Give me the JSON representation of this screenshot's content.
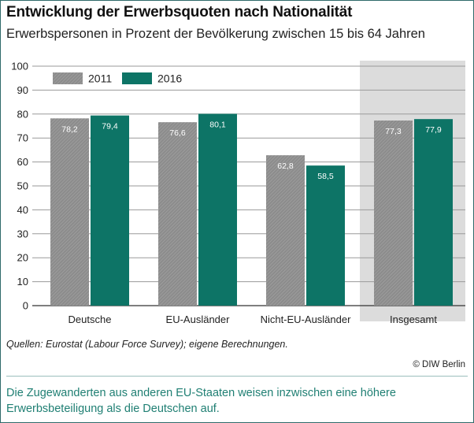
{
  "title": "Entwicklung der Erwerbsquoten nach Nationalität",
  "subtitle": "Erwerbspersonen in Prozent der Bevölkerung zwischen 15 bis 64 Jahren",
  "source": "Quellen: Eurostat (Labour Force Survey); eigene Berechnungen.",
  "copyright": "© DIW Berlin",
  "caption": "Die Zugewanderten aus anderen EU-Staaten weisen inzwischen eine höhere Erwerbsbeteiligung als die Deutschen auf.",
  "colors": {
    "series_2011": "#8c8c8c",
    "series_2016": "#0d7466",
    "highlight_bg": "#dcdcdc",
    "accent_text": "#1f7f73"
  },
  "chart_data": {
    "type": "bar",
    "categories": [
      "Deutsche",
      "EU-Ausländer",
      "Nicht-EU-Ausländer",
      "Insgesamt"
    ],
    "highlighted_category": "Insgesamt",
    "series": [
      {
        "name": "2011",
        "values": [
          78.2,
          76.6,
          62.8,
          77.3
        ],
        "labels": [
          "78,2",
          "76,6",
          "62,8",
          "77,3"
        ],
        "pattern": "hatched"
      },
      {
        "name": "2016",
        "values": [
          79.4,
          80.1,
          58.5,
          77.9
        ],
        "labels": [
          "79,4",
          "80,1",
          "58,5",
          "77,9"
        ],
        "pattern": "solid"
      }
    ],
    "ylim": [
      0,
      100
    ],
    "yticks": [
      0,
      10,
      20,
      30,
      40,
      50,
      60,
      70,
      80,
      90,
      100
    ],
    "grid": true,
    "legend": "top-left"
  }
}
